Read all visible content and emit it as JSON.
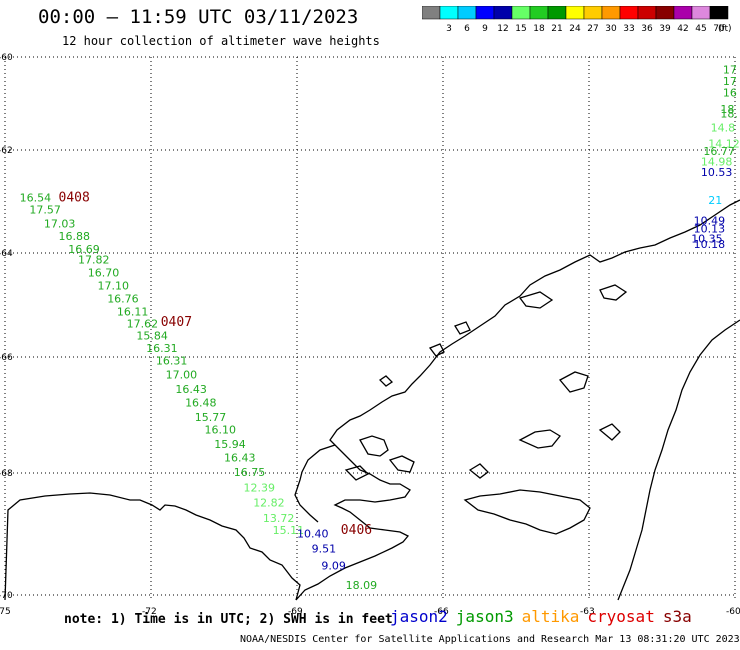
{
  "header": {
    "title": "00:00 – 11:59 UTC 03/11/2023",
    "subtitle": "12 hour collection of altimeter wave heights"
  },
  "colorbar": {
    "unit": "(ft)",
    "bins": [
      {
        "label": "",
        "color": "#808080"
      },
      {
        "label": "3",
        "color": "#00ffff"
      },
      {
        "label": "6",
        "color": "#00ccff"
      },
      {
        "label": "9",
        "color": "#0000ff"
      },
      {
        "label": "12",
        "color": "#0000aa"
      },
      {
        "label": "15",
        "color": "#66ff66"
      },
      {
        "label": "18",
        "color": "#22cc22"
      },
      {
        "label": "21",
        "color": "#009900"
      },
      {
        "label": "24",
        "color": "#ffff00"
      },
      {
        "label": "27",
        "color": "#ffcc00"
      },
      {
        "label": "30",
        "color": "#ff9900"
      },
      {
        "label": "33",
        "color": "#ff0000"
      },
      {
        "label": "36",
        "color": "#cc0000"
      },
      {
        "label": "39",
        "color": "#880000"
      },
      {
        "label": "42",
        "color": "#aa00aa"
      },
      {
        "label": "45",
        "color": "#dd88dd"
      },
      {
        "label": "70",
        "color": "#000000"
      }
    ]
  },
  "axes": {
    "lat_labels": [
      "-60",
      "-62",
      "-64",
      "-66",
      "-68",
      "-70"
    ],
    "lon_labels": [
      "-75",
      "-72",
      "-69",
      "-66",
      "-63",
      "-60"
    ]
  },
  "time_labels": [
    {
      "text": "0408",
      "lat": -63.0,
      "lon": -73.9
    },
    {
      "text": "0407",
      "lat": -65.4,
      "lon": -71.8
    },
    {
      "text": "0406",
      "lat": -69.0,
      "lon": -68.1
    }
  ],
  "track": [
    {
      "v": "16.54",
      "lat": -63.0,
      "lon": -74.7,
      "c": "#22aa22"
    },
    {
      "v": "17.57",
      "lat": -63.23,
      "lon": -74.5,
      "c": "#22aa22"
    },
    {
      "v": "17.03",
      "lat": -63.5,
      "lon": -74.2,
      "c": "#22aa22"
    },
    {
      "v": "16.88",
      "lat": -63.75,
      "lon": -73.9,
      "c": "#22aa22"
    },
    {
      "v": "16.69",
      "lat": -64.0,
      "lon": -73.7,
      "c": "#22aa22"
    },
    {
      "v": "17.82",
      "lat": -64.2,
      "lon": -73.5,
      "c": "#22aa22"
    },
    {
      "v": "16.70",
      "lat": -64.45,
      "lon": -73.3,
      "c": "#22aa22"
    },
    {
      "v": "17.10",
      "lat": -64.7,
      "lon": -73.1,
      "c": "#22aa22"
    },
    {
      "v": "16.76",
      "lat": -64.95,
      "lon": -72.9,
      "c": "#22aa22"
    },
    {
      "v": "16.11",
      "lat": -65.2,
      "lon": -72.7,
      "c": "#22aa22"
    },
    {
      "v": "17.62",
      "lat": -65.43,
      "lon": -72.5,
      "c": "#22aa22"
    },
    {
      "v": "15.84",
      "lat": -65.66,
      "lon": -72.3,
      "c": "#22aa22"
    },
    {
      "v": "16.31",
      "lat": -65.9,
      "lon": -72.1,
      "c": "#22aa22"
    },
    {
      "v": "16.31",
      "lat": -66.13,
      "lon": -71.9,
      "c": "#22aa22"
    },
    {
      "v": "17.00",
      "lat": -66.37,
      "lon": -71.7,
      "c": "#22aa22"
    },
    {
      "v": "16.43",
      "lat": -66.62,
      "lon": -71.5,
      "c": "#22aa22"
    },
    {
      "v": "16.48",
      "lat": -66.85,
      "lon": -71.3,
      "c": "#22aa22"
    },
    {
      "v": "15.77",
      "lat": -67.1,
      "lon": -71.1,
      "c": "#22aa22"
    },
    {
      "v": "16.10",
      "lat": -67.32,
      "lon": -70.9,
      "c": "#22aa22"
    },
    {
      "v": "15.94",
      "lat": -67.57,
      "lon": -70.7,
      "c": "#22aa22"
    },
    {
      "v": "16.43",
      "lat": -67.8,
      "lon": -70.5,
      "c": "#22aa22"
    },
    {
      "v": "16.75",
      "lat": -68.05,
      "lon": -70.3,
      "c": "#22aa22"
    },
    {
      "v": "12.39",
      "lat": -68.3,
      "lon": -70.1,
      "c": "#66ee66"
    },
    {
      "v": "12.82",
      "lat": -68.55,
      "lon": -69.9,
      "c": "#66ee66"
    },
    {
      "v": "13.72",
      "lat": -68.8,
      "lon": -69.7,
      "c": "#66ee66"
    },
    {
      "v": "15.11",
      "lat": -69.0,
      "lon": -69.5,
      "c": "#66ee66"
    },
    {
      "v": "10.40",
      "lat": -69.06,
      "lon": -69.0,
      "c": "#0000aa"
    },
    {
      "v": "9.51",
      "lat": -69.3,
      "lon": -68.7,
      "c": "#0000aa"
    },
    {
      "v": "9.09",
      "lat": -69.58,
      "lon": -68.5,
      "c": "#0000aa"
    },
    {
      "v": "18.09",
      "lat": -69.9,
      "lon": -68.0,
      "c": "#22aa22"
    }
  ],
  "edge_values": [
    {
      "v": "17",
      "lat": -60.35,
      "lon": -60.25,
      "c": "#22aa22"
    },
    {
      "v": "17",
      "lat": -60.6,
      "lon": -60.25,
      "c": "#22aa22"
    },
    {
      "v": "16",
      "lat": -60.85,
      "lon": -60.25,
      "c": "#22aa22"
    },
    {
      "v": "18",
      "lat": -61.2,
      "lon": -60.3,
      "c": "#22aa22"
    },
    {
      "v": "18.",
      "lat": -61.3,
      "lon": -60.3,
      "c": "#22aa22"
    },
    {
      "v": "14.8",
      "lat": -61.6,
      "lon": -60.5,
      "c": "#66ee66"
    },
    {
      "v": "14.12",
      "lat": -61.95,
      "lon": -60.55,
      "c": "#66ee66"
    },
    {
      "v": "16.77",
      "lat": -62.1,
      "lon": -60.65,
      "c": "#22aa22"
    },
    {
      "v": "14.98",
      "lat": -62.3,
      "lon": -60.7,
      "c": "#66ee66"
    },
    {
      "v": "10.53",
      "lat": -62.5,
      "lon": -60.7,
      "c": "#0000aa"
    },
    {
      "v": "21",
      "lat": -63.05,
      "lon": -60.55,
      "c": "#00ccff"
    },
    {
      "v": "10.49",
      "lat": -63.45,
      "lon": -60.85,
      "c": "#0000aa"
    },
    {
      "v": "10.13",
      "lat": -63.6,
      "lon": -60.85,
      "c": "#0000aa"
    },
    {
      "v": "10.35",
      "lat": -63.8,
      "lon": -60.9,
      "c": "#0000aa"
    },
    {
      "v": "10.18",
      "lat": -63.9,
      "lon": -60.85,
      "c": "#0000aa"
    }
  ],
  "note": "note: 1) Time is in UTC; 2) SWH is in feet",
  "satellites": [
    {
      "name": "jason2",
      "color": "#0000cc"
    },
    {
      "name": "jason3",
      "color": "#009900"
    },
    {
      "name": "altika",
      "color": "#ff9900"
    },
    {
      "name": "cryosat",
      "color": "#dd0000"
    },
    {
      "name": "s3a",
      "color": "#880000"
    }
  ],
  "footer": "NOAA/NESDIS Center for Satellite Applications and Research   Mar 13 08:31:20 UTC 2023"
}
